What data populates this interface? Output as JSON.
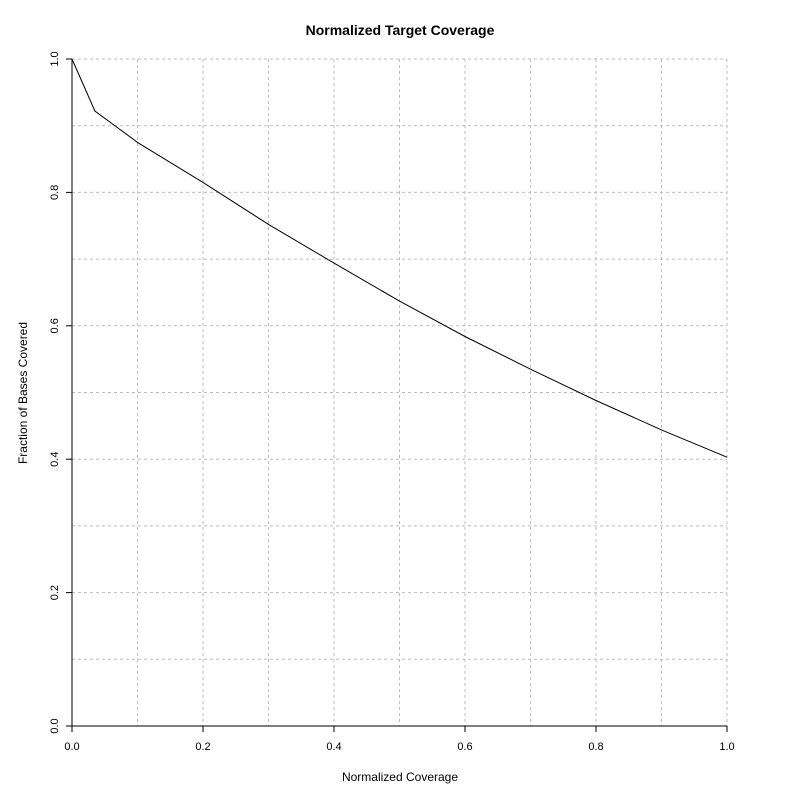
{
  "chart_data": {
    "type": "line",
    "title": "Normalized Target Coverage",
    "xlabel": "Normalized Coverage",
    "ylabel": "Fraction of Bases Covered",
    "xlim": [
      0,
      1
    ],
    "ylim": [
      0,
      1
    ],
    "x_ticks": [
      0.0,
      0.2,
      0.4,
      0.6,
      0.8,
      1.0
    ],
    "x_tick_labels": [
      "0.0",
      "0.2",
      "0.4",
      "0.6",
      "0.8",
      "1.0"
    ],
    "y_ticks": [
      0.0,
      0.2,
      0.4,
      0.6,
      0.8,
      1.0
    ],
    "y_tick_labels": [
      "0.0",
      "0.2",
      "0.4",
      "0.6",
      "0.8",
      "1.0"
    ],
    "grid": true,
    "grid_x": [
      0.1,
      0.2,
      0.3,
      0.4,
      0.5,
      0.6,
      0.7,
      0.8,
      0.9,
      1.0
    ],
    "grid_y": [
      0.1,
      0.2,
      0.3,
      0.4,
      0.5,
      0.6,
      0.7,
      0.8,
      0.9,
      1.0
    ],
    "series": [
      {
        "x": [
          0.0,
          0.035,
          0.1,
          0.2,
          0.3,
          0.4,
          0.5,
          0.6,
          0.7,
          0.8,
          0.9,
          1.0
        ],
        "y": [
          1.0,
          0.922,
          0.875,
          0.815,
          0.752,
          0.694,
          0.637,
          0.584,
          0.535,
          0.488,
          0.444,
          0.403
        ],
        "color": "#000000"
      }
    ]
  }
}
